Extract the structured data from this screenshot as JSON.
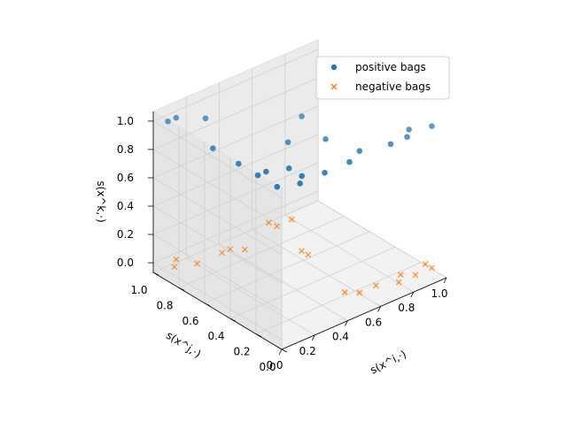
{
  "chart_data": {
    "type": "scatter",
    "projection": "3d",
    "xlabel": "s(x^i,·)",
    "ylabel": "s(x^j,·)",
    "zlabel": "s(x^k,·)",
    "xlim": [
      0,
      1
    ],
    "ylim": [
      0,
      1
    ],
    "zlim": [
      0,
      1
    ],
    "xticks": [
      "0.0",
      "0.2",
      "0.4",
      "0.6",
      "0.8",
      "1.0"
    ],
    "yticks": [
      "0.0",
      "0.2",
      "0.4",
      "0.6",
      "0.8",
      "1.0"
    ],
    "zticks": [
      "0.0",
      "0.2",
      "0.4",
      "0.6",
      "0.8",
      "1.0"
    ],
    "grid": true,
    "legend_position": "top-right",
    "series": [
      {
        "name": "positive bags",
        "marker": "circle",
        "color": "#1f77b4",
        "points": [
          [
            0.95,
            0.05,
            1.0
          ],
          [
            0.05,
            0.95,
            1.0
          ],
          [
            0.1,
            0.95,
            1.0
          ],
          [
            0.05,
            0.6,
            1.0
          ],
          [
            0.2,
            0.85,
            1.0
          ],
          [
            0.05,
            0.4,
            1.0
          ],
          [
            0.05,
            0.25,
            1.0
          ],
          [
            0.1,
            0.25,
            1.0
          ],
          [
            0.2,
            0.2,
            1.0
          ],
          [
            0.05,
            0.1,
            1.0
          ],
          [
            0.15,
            0.05,
            1.0
          ],
          [
            0.2,
            0.1,
            1.0
          ],
          [
            0.3,
            0.05,
            1.0
          ],
          [
            0.45,
            0.05,
            1.0
          ],
          [
            0.55,
            0.1,
            1.0
          ],
          [
            0.7,
            0.05,
            1.0
          ],
          [
            0.8,
            0.05,
            1.0
          ],
          [
            0.85,
            0.1,
            1.0
          ],
          [
            0.35,
            0.4,
            1.0
          ],
          [
            0.55,
            0.55,
            1.0
          ],
          [
            0.5,
            0.3,
            1.0
          ]
        ]
      },
      {
        "name": "negative bags",
        "marker": "x",
        "color": "#ff7f0e",
        "points": [
          [
            0.35,
            0.55,
            0.35
          ],
          [
            0.4,
            0.55,
            0.3
          ],
          [
            0.45,
            0.5,
            0.35
          ],
          [
            0.55,
            0.55,
            0.05
          ],
          [
            0.55,
            0.5,
            0.05
          ],
          [
            0.05,
            0.9,
            0.0
          ],
          [
            0.1,
            0.95,
            0.0
          ],
          [
            0.15,
            0.85,
            0.0
          ],
          [
            0.3,
            0.85,
            0.0
          ],
          [
            0.35,
            0.85,
            0.0
          ],
          [
            0.4,
            0.8,
            0.0
          ],
          [
            0.65,
            0.1,
            0.0
          ],
          [
            0.75,
            0.05,
            0.0
          ],
          [
            0.8,
            0.1,
            0.0
          ],
          [
            0.85,
            0.05,
            0.0
          ],
          [
            0.95,
            0.1,
            0.0
          ],
          [
            0.95,
            0.05,
            0.0
          ],
          [
            0.55,
            0.1,
            0.0
          ],
          [
            0.5,
            0.15,
            0.0
          ]
        ]
      }
    ]
  }
}
